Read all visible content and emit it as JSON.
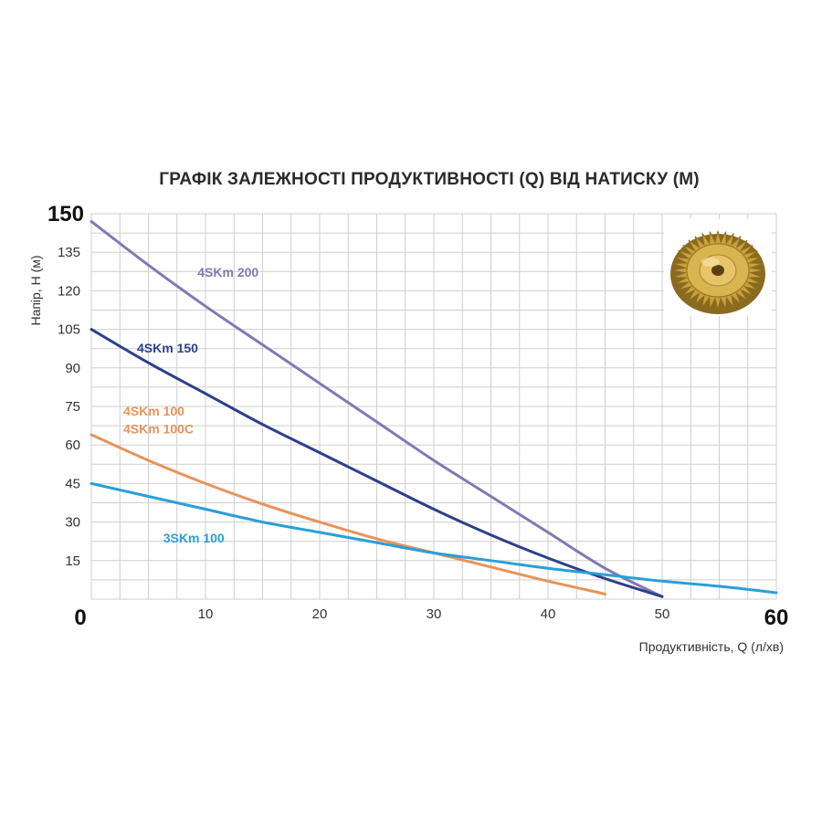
{
  "chart_data": {
    "type": "line",
    "title": "ГРАФІК ЗАЛЕЖНОСТІ ПРОДУКТИВНОСТІ (Q) ВІД НАТИСКУ (М)",
    "xlabel": "Продуктивність, Q (л/хв)",
    "ylabel": "Напір, H (м)",
    "xlim": [
      0,
      60
    ],
    "ylim": [
      0,
      150
    ],
    "x_ticks": [
      "0",
      "10",
      "20",
      "30",
      "40",
      "50",
      "60"
    ],
    "y_ticks": [
      "15",
      "30",
      "45",
      "60",
      "75",
      "90",
      "105",
      "120",
      "135",
      "150"
    ],
    "grid": true,
    "series": [
      {
        "name": "4SKm 200",
        "color": "#8378b6",
        "points": [
          [
            0,
            147
          ],
          [
            5,
            130
          ],
          [
            10,
            114
          ],
          [
            15,
            99
          ],
          [
            20,
            84
          ],
          [
            25,
            69
          ],
          [
            30,
            54
          ],
          [
            35,
            40
          ],
          [
            40,
            26
          ],
          [
            45,
            12
          ],
          [
            50,
            1
          ]
        ]
      },
      {
        "name": "4SKm 150",
        "color": "#2e3f8a",
        "points": [
          [
            0,
            105
          ],
          [
            5,
            92
          ],
          [
            10,
            80
          ],
          [
            15,
            68
          ],
          [
            20,
            57
          ],
          [
            25,
            46
          ],
          [
            30,
            35
          ],
          [
            35,
            25
          ],
          [
            40,
            16
          ],
          [
            45,
            8
          ],
          [
            50,
            1
          ]
        ]
      },
      {
        "name": "4SKm 100 / 4SKm 100C",
        "labels": [
          "4SKm 100",
          "4SKm 100C"
        ],
        "color": "#e8935a",
        "points": [
          [
            0,
            64
          ],
          [
            5,
            54
          ],
          [
            10,
            45
          ],
          [
            15,
            37
          ],
          [
            20,
            30
          ],
          [
            25,
            23.5
          ],
          [
            30,
            18
          ],
          [
            35,
            12.5
          ],
          [
            40,
            7
          ],
          [
            45,
            2
          ]
        ]
      },
      {
        "name": "3SKm 100",
        "color": "#2a9fd6",
        "points": [
          [
            0,
            45
          ],
          [
            5,
            40
          ],
          [
            10,
            35
          ],
          [
            15,
            30
          ],
          [
            20,
            26
          ],
          [
            25,
            22
          ],
          [
            30,
            18
          ],
          [
            35,
            15
          ],
          [
            40,
            12
          ],
          [
            45,
            9.5
          ],
          [
            50,
            7
          ],
          [
            55,
            5
          ],
          [
            60,
            2.5
          ]
        ]
      }
    ]
  },
  "image": {
    "name": "impeller-photo",
    "description_icon": "brass-impeller-icon"
  }
}
